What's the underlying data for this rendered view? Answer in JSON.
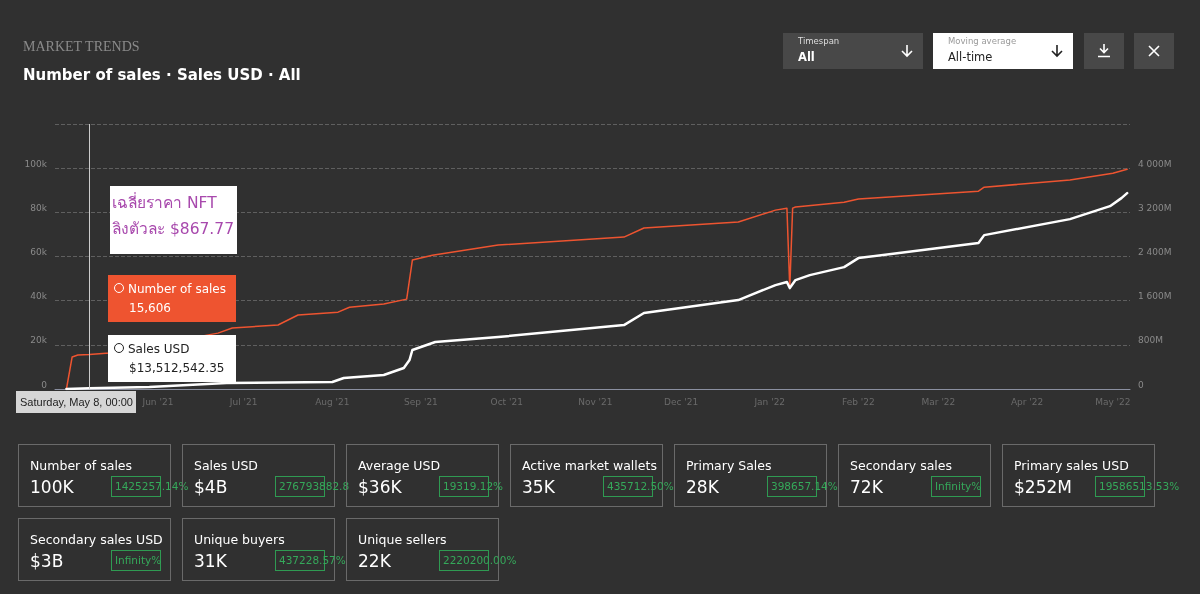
{
  "chart_data": [
    {
      "type": "line",
      "title": "MARKET TRENDS",
      "subtitle": "Number of sales · Sales USD · All",
      "series": [
        {
          "name": "Number of sales",
          "color": "#ee5430",
          "x": [
            "2021-04-30",
            "2021-05-02",
            "2021-05-04",
            "2021-05-08",
            "2021-05-15",
            "2021-06-22",
            "2021-06-27",
            "2021-07-13",
            "2021-07-20",
            "2021-08-03",
            "2021-08-07",
            "2021-08-19",
            "2021-08-27",
            "2021-08-29",
            "2021-09-05",
            "2021-09-28",
            "2021-11-11",
            "2021-11-18",
            "2021-12-21",
            "2022-01-03",
            "2022-01-07",
            "2022-01-08",
            "2022-01-09",
            "2022-01-10",
            "2022-01-27",
            "2022-02-01",
            "2022-03-15",
            "2022-03-17",
            "2022-04-16",
            "2022-05-01",
            "2022-05-06"
          ],
          "values": [
            0,
            14500,
            15400,
            15606,
            16300,
            25300,
            27600,
            29000,
            33500,
            34800,
            37000,
            38500,
            40700,
            58400,
            60600,
            65200,
            68800,
            72900,
            75600,
            81000,
            81900,
            45700,
            81900,
            82400,
            84600,
            86000,
            89600,
            91400,
            94600,
            97700,
            99500
          ]
        },
        {
          "name": "Sales USD",
          "color": "#ffffff",
          "axis": "y2",
          "x": [
            "2021-04-30",
            "2021-05-08",
            "2021-05-29",
            "2021-06-25",
            "2021-08-01",
            "2021-08-05",
            "2021-08-19",
            "2021-08-26",
            "2021-08-28",
            "2021-08-29",
            "2021-09-06",
            "2021-09-28",
            "2021-11-11",
            "2021-11-18",
            "2021-12-21",
            "2022-01-03",
            "2022-01-07",
            "2022-01-08",
            "2022-01-10",
            "2022-01-15",
            "2022-01-27",
            "2022-02-01",
            "2022-03-15",
            "2022-03-17",
            "2022-04-16",
            "2022-04-30",
            "2022-05-04",
            "2022-05-06"
          ],
          "values": [
            0,
            13512542.35,
            36000000,
            109000000,
            127000000,
            199000000,
            253000000,
            380000000,
            525000000,
            706000000,
            851000000,
            941000000,
            1158000000,
            1376000000,
            1611000000,
            1882000000,
            1937000000,
            1828000000,
            1973000000,
            2063000000,
            2208000000,
            2371000000,
            2643000000,
            2787000000,
            3077000000,
            3312000000,
            3457000000,
            3548000000
          ]
        }
      ],
      "xlim": [
        "2021-04-26",
        "2022-05-07"
      ],
      "xticks": [
        {
          "value": "2021-06-01",
          "label": "Jun '21"
        },
        {
          "value": "2021-07-01",
          "label": "Jul '21"
        },
        {
          "value": "2021-08-01",
          "label": "Aug '21"
        },
        {
          "value": "2021-09-01",
          "label": "Sep '21"
        },
        {
          "value": "2021-10-01",
          "label": "Oct '21"
        },
        {
          "value": "2021-11-01",
          "label": "Nov '21"
        },
        {
          "value": "2021-12-01",
          "label": "Dec '21"
        },
        {
          "value": "2022-01-01",
          "label": "Jan '22"
        },
        {
          "value": "2022-02-01",
          "label": "Feb '22"
        },
        {
          "value": "2022-03-01",
          "label": "Mar '22"
        },
        {
          "value": "2022-04-01",
          "label": "Apr '22"
        },
        {
          "value": "2022-05-01",
          "label": "May '22"
        }
      ],
      "ylim": [
        0,
        120000
      ],
      "yticks": [
        0,
        {
          "value": 20000,
          "label": "20k"
        },
        {
          "value": 40000,
          "label": "40k"
        },
        {
          "value": 60000,
          "label": "60k"
        },
        {
          "value": 80000,
          "label": "80k"
        },
        {
          "value": 100000,
          "label": "100k"
        },
        {
          "value": 120000,
          "label": null
        }
      ],
      "y2lim": [
        0,
        4800000000
      ],
      "y2ticks": [
        0,
        {
          "value": 800000000,
          "label": "800M"
        },
        {
          "value": 1600000000,
          "label": "1 600M"
        },
        {
          "value": 2400000000,
          "label": "2 400M"
        },
        {
          "value": 3200000000,
          "label": "3 200M"
        },
        {
          "value": 4000000000,
          "label": "4 000M"
        },
        {
          "value": 4800000000,
          "label": null
        }
      ],
      "grid": "y",
      "legend": "left",
      "marker": "none",
      "line_style": "solid",
      "ref_lines": [
        {
          "axis": "x",
          "value": "2021-05-08",
          "color": "#cccccc"
        }
      ],
      "annotations": [
        "เฉลี่ยราคา NFT\nลิงตัวละ $867.77",
        "15,606",
        "$13,512,542.35",
        "Saturday, May 8, 00:00"
      ]
    },
    {
      "type": "other",
      "annotations": [
        "Timespan",
        "All",
        "Moving average",
        "All-time"
      ]
    },
    {
      "type": "other",
      "categories": [
        "Number of sales",
        "Sales USD",
        "Average USD",
        "Active market wallets",
        "Primary Sales",
        "Secondary sales",
        "Primary sales USD",
        "Secondary sales USD",
        "Unique buyers",
        "Unique sellers"
      ],
      "value_labels": [
        "100K",
        "$4B",
        "$36K",
        "35K",
        "28K",
        "72K",
        "$252M",
        "$3B",
        "31K",
        "22K"
      ],
      "annotations": [
        "1425257.14%",
        "276793882.8",
        "19319.12%",
        "435712.50%",
        "398657.14%",
        "Infinity%",
        "19586513.53%",
        "Infinity%",
        "437228.57%",
        "2220200.00%"
      ]
    }
  ]
}
